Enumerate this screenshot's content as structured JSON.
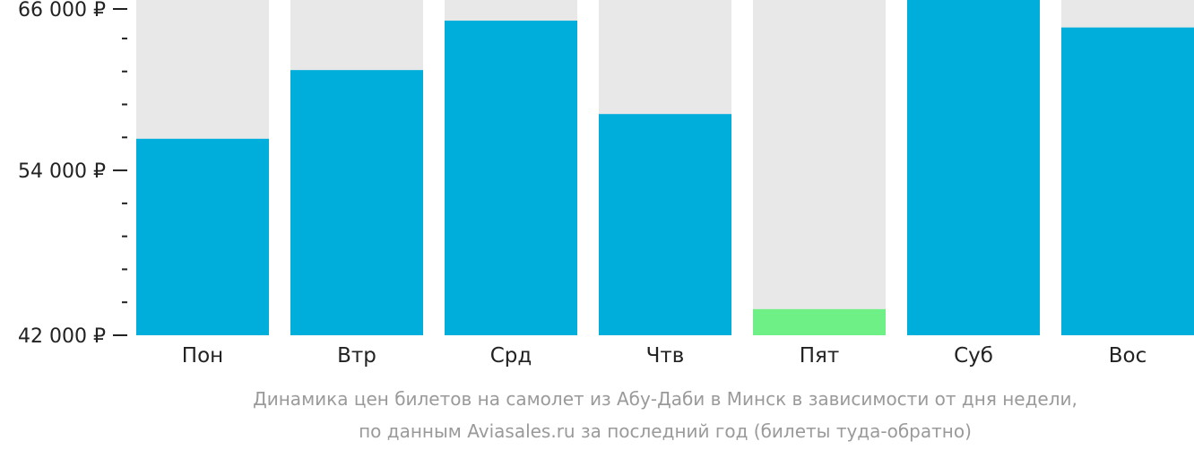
{
  "chart_data": {
    "type": "bar",
    "categories": [
      "Пон",
      "Втр",
      "Срд",
      "Чтв",
      "Пят",
      "Суб",
      "Вос"
    ],
    "values": [
      56300,
      61300,
      64900,
      58100,
      43900,
      66400,
      64400
    ],
    "ylim": [
      42000,
      66400
    ],
    "y_ticks": [
      {
        "value": 66000,
        "label": "66 000 ₽"
      },
      {
        "value": 54000,
        "label": "54 000 ₽"
      },
      {
        "value": 42000,
        "label": "42 000 ₽"
      }
    ],
    "y_minor_tick_step": 2400,
    "title": "",
    "xlabel": "",
    "ylabel": "",
    "grid": false,
    "legend": "none",
    "caption": [
      "Динамика цен билетов на самолет из Абу-Даби в Минск в зависимости от дня недели,",
      "по данным Aviasales.ru за последний год (билеты туда-обратно)"
    ],
    "colors": {
      "bar": "#00aedb",
      "bar_lowest": "#6ef087",
      "bar_background": "#e8e8e8",
      "text": "#222222",
      "caption": "#9a9a9a"
    },
    "lowest_index": 4
  }
}
